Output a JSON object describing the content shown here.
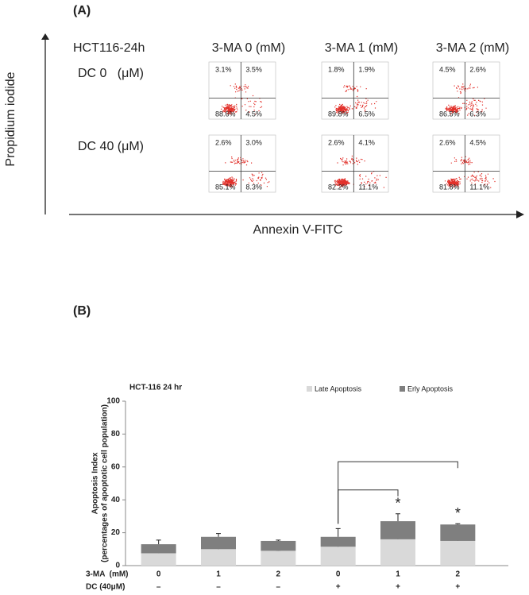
{
  "panel_a": {
    "label": "(A)",
    "cell_line": "HCT116-24h",
    "columns": [
      "3-MA 0 (mM)",
      "3-MA 1 (mM)",
      "3-MA 2 (mM)"
    ],
    "rows": [
      "DC 0   (μM)",
      "DC 40 (μM)"
    ],
    "y_axis": "Propidium iodide",
    "x_axis": "Annexin V-FITC",
    "plots": [
      [
        [
          "3.1%",
          "3.5%",
          "88.6%",
          "4.5%"
        ],
        [
          "1.8%",
          "1.9%",
          "89.8%",
          "6.5%"
        ],
        [
          "4.5%",
          "2.6%",
          "86.5%",
          "6.3%"
        ]
      ],
      [
        [
          "2.6%",
          "3.0%",
          "85.1%",
          "8.3%"
        ],
        [
          "2.6%",
          "4.1%",
          "82.2%",
          "11.1%"
        ],
        [
          "2.6%",
          "4.5%",
          "81.8%",
          "11.1%"
        ]
      ]
    ]
  },
  "panel_b_label": "(B)",
  "chart_data": {
    "type": "bar",
    "stacked": true,
    "title": "HCT-116 24 hr",
    "ylabel": "Apoptosis Index",
    "ylabel_sub": "(percentages of apoptotic cell population)",
    "category_rows": [
      {
        "label": "3-MA  (mM)",
        "values": [
          "0",
          "1",
          "2",
          "0",
          "1",
          "2"
        ]
      },
      {
        "label": "DC (40μM)",
        "values": [
          "–",
          "–",
          "–",
          "+",
          "+",
          "+"
        ]
      }
    ],
    "series": [
      {
        "name": "Late Apoptosis",
        "color": "#d9d9d9",
        "values": [
          7.5,
          10,
          9,
          11.5,
          16,
          15
        ],
        "errors": [
          3,
          0.5,
          0.3,
          4,
          1,
          3
        ]
      },
      {
        "name": "Erly Apoptosis",
        "color": "#7f7f7f",
        "values": [
          5.5,
          7.5,
          6,
          6,
          11,
          10
        ],
        "errors": [
          2.5,
          2,
          0.5,
          5,
          4.5,
          0.5
        ]
      }
    ],
    "asterisks": [
      null,
      null,
      null,
      null,
      "*",
      "*"
    ],
    "ylim": [
      0,
      100
    ],
    "yticks": [
      0,
      20,
      40,
      60,
      80,
      100
    ],
    "grid": false
  }
}
